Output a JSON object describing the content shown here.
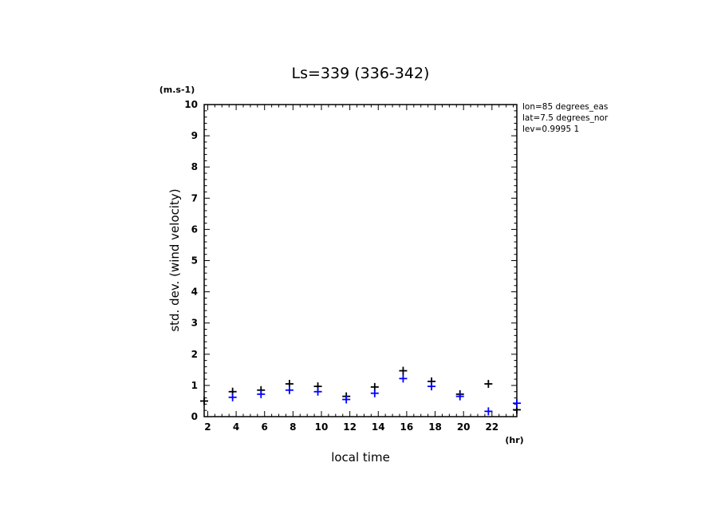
{
  "chart_data": {
    "type": "scatter",
    "title": "Ls=339 (336-342)",
    "xlabel": "local time",
    "ylabel": "std. dev. (wind velocity)",
    "x_unit": "(hr)",
    "y_unit": "(m.s-1)",
    "xlim": [
      1.75,
      23.75
    ],
    "ylim": [
      0,
      10
    ],
    "x_ticks": [
      2,
      4,
      6,
      8,
      10,
      12,
      14,
      16,
      18,
      20,
      22
    ],
    "y_ticks": [
      0,
      1,
      2,
      3,
      4,
      5,
      6,
      7,
      8,
      9,
      10
    ],
    "grid": false,
    "annotations": [
      "lon=85 degrees_eas",
      "lat=7.5 degrees_nor",
      "lev=0.9995 1"
    ],
    "series": [
      {
        "color": "#000000",
        "marker": "plus",
        "x": [
          1.75,
          3.75,
          5.75,
          7.75,
          9.75,
          11.75,
          13.75,
          15.75,
          17.75,
          19.75,
          21.75,
          23.75
        ],
        "y": [
          0.5,
          0.8,
          0.85,
          1.05,
          0.97,
          0.65,
          0.95,
          1.47,
          1.13,
          0.72,
          1.05,
          0.22
        ]
      },
      {
        "color": "#0000ff",
        "marker": "plus",
        "x": [
          3.75,
          5.75,
          7.75,
          9.75,
          11.75,
          13.75,
          15.75,
          17.75,
          19.75,
          21.75,
          23.75
        ],
        "y": [
          0.62,
          0.72,
          0.85,
          0.8,
          0.55,
          0.75,
          1.22,
          0.97,
          0.65,
          0.17,
          0.43
        ]
      }
    ]
  }
}
